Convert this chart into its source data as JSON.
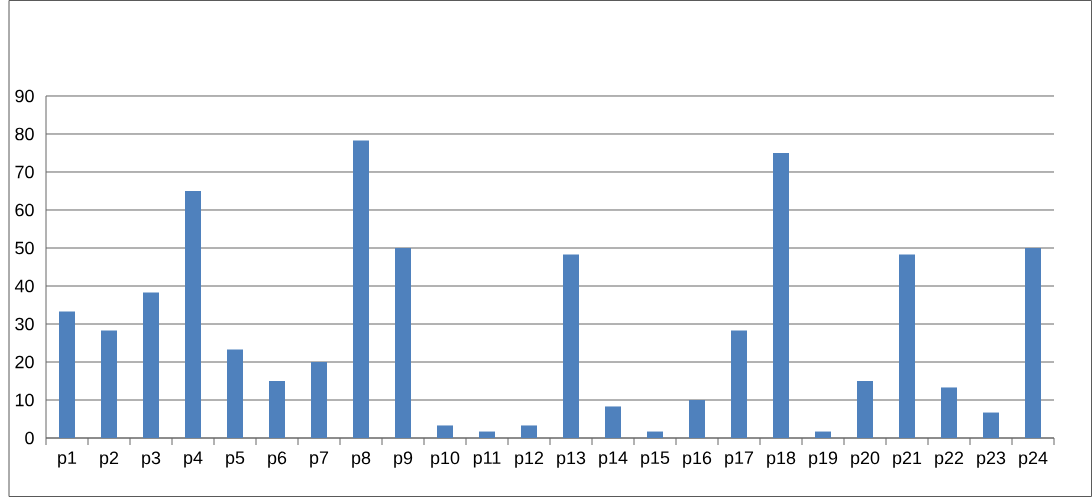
{
  "chart_data": {
    "type": "bar",
    "categories": [
      "p1",
      "p2",
      "p3",
      "p4",
      "p5",
      "p6",
      "p7",
      "p8",
      "p9",
      "p10",
      "p11",
      "p12",
      "p13",
      "p14",
      "p15",
      "p16",
      "p17",
      "p18",
      "p19",
      "p20",
      "p21",
      "p22",
      "p23",
      "p24"
    ],
    "series": [
      {
        "color": "#4f81bd",
        "values": [
          33.3,
          28.3,
          38.3,
          65,
          23.3,
          15,
          20,
          78.3,
          50,
          3.3,
          1.7,
          3.3,
          48.3,
          8.3,
          1.7,
          10,
          28.3,
          75,
          1.7,
          15,
          48.3,
          13.3,
          6.7,
          50
        ]
      }
    ],
    "ylim": [
      0,
      90
    ],
    "yticks": [
      0,
      10,
      20,
      30,
      40,
      50,
      60,
      70,
      80,
      90
    ],
    "grid": "y"
  }
}
